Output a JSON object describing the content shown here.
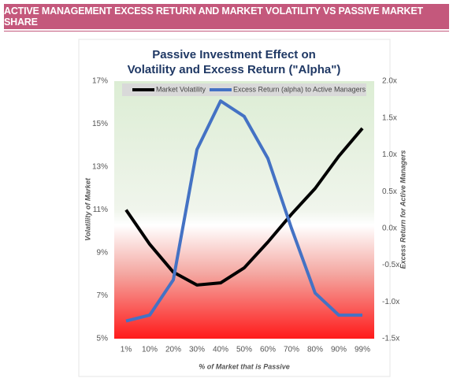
{
  "header": {
    "title": "ACTIVE MANAGEMENT EXCESS RETURN AND MARKET VOLATILITY VS PASSIVE MARKET SHARE"
  },
  "chart_data": {
    "type": "line",
    "title": [
      "Passive Investment Effect on",
      "Volatility and Excess Return (\"Alpha\")"
    ],
    "x_label": "% of Market that is Passive",
    "y_label": "Volatility of Market",
    "y2_label": "Excess Return for Active Managers",
    "categories": [
      "1%",
      "10%",
      "20%",
      "30%",
      "40%",
      "50%",
      "60%",
      "70%",
      "80%",
      "90%",
      "99%"
    ],
    "series": [
      {
        "name": "Market Volatility",
        "color": "#000000",
        "values": [
          11.0,
          9.4,
          8.1,
          7.5,
          7.6,
          8.3,
          9.5,
          10.8,
          12.0,
          13.5,
          14.8
        ]
      },
      {
        "name": "Excess Return (alpha) to Active Managers",
        "color": "#4472c4",
        "axis": "y2",
        "values": [
          -1.26,
          -1.18,
          -0.7,
          1.07,
          1.73,
          1.52,
          0.95,
          0.0,
          -0.88,
          -1.18,
          -1.18
        ]
      }
    ],
    "ylim": [
      5,
      17
    ],
    "yticks": [
      {
        "value": 5,
        "label": "5%"
      },
      {
        "value": 7,
        "label": "7%"
      },
      {
        "value": 9,
        "label": "9%"
      },
      {
        "value": 11,
        "label": "11%"
      },
      {
        "value": 13,
        "label": "13%"
      },
      {
        "value": 15,
        "label": "15%"
      },
      {
        "value": 17,
        "label": "17%"
      }
    ],
    "y2lim": [
      -1.5,
      2.0
    ],
    "y2ticks": [
      {
        "value": -1.5,
        "label": "-1.5x"
      },
      {
        "value": -1.0,
        "label": "-1.0x"
      },
      {
        "value": -0.5,
        "label": "-0.5x"
      },
      {
        "value": 0.0,
        "label": "0.0x"
      },
      {
        "value": 0.5,
        "label": "0.5x"
      },
      {
        "value": 1.0,
        "label": "1.0x"
      },
      {
        "value": 1.5,
        "label": "1.5x"
      },
      {
        "value": 2.0,
        "label": "2.0x"
      }
    ]
  }
}
